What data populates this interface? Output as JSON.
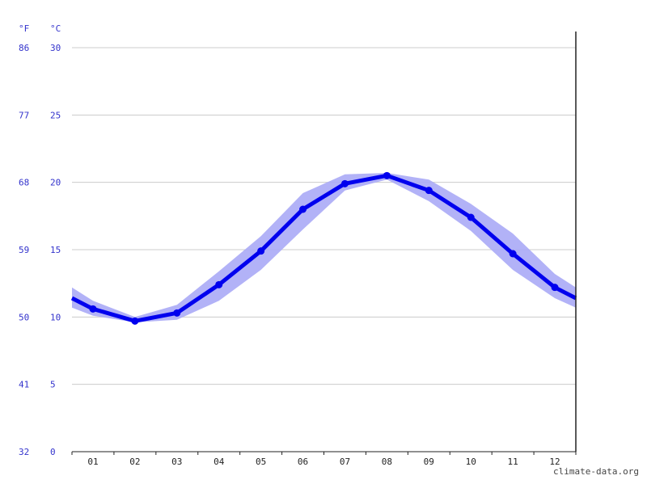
{
  "chart_data": {
    "type": "line",
    "unit_f": "°F",
    "unit_c": "°C",
    "categories": [
      "01",
      "02",
      "03",
      "04",
      "05",
      "06",
      "07",
      "08",
      "09",
      "10",
      "11",
      "12"
    ],
    "series": [
      {
        "values": [
          10.6,
          9.7,
          10.3,
          12.4,
          14.9,
          18.0,
          19.9,
          20.5,
          19.4,
          17.4,
          14.7,
          12.2
        ]
      }
    ],
    "band_low": [
      10.1,
      9.6,
      9.8,
      11.2,
      13.5,
      16.5,
      19.4,
      20.2,
      18.6,
      16.4,
      13.5,
      11.4
    ],
    "band_high": [
      11.2,
      10.0,
      10.9,
      13.4,
      16.0,
      19.2,
      20.6,
      20.7,
      20.2,
      18.4,
      16.2,
      13.2
    ],
    "edge": {
      "start_value": 11.4,
      "start_low": 10.7,
      "start_high": 12.2,
      "end_value": 11.4,
      "end_low": 10.7,
      "end_high": 12.2
    },
    "ylim": [
      0,
      30
    ],
    "y_ticks_c": [
      "0",
      "5",
      "10",
      "15",
      "20",
      "25",
      "30"
    ],
    "y_ticks_f": [
      "32",
      "41",
      "50",
      "59",
      "68",
      "77",
      "86"
    ],
    "grid": true,
    "line_color": "#0000ee",
    "band_color": "#aaaaf6"
  },
  "watermark": "climate-data.org"
}
